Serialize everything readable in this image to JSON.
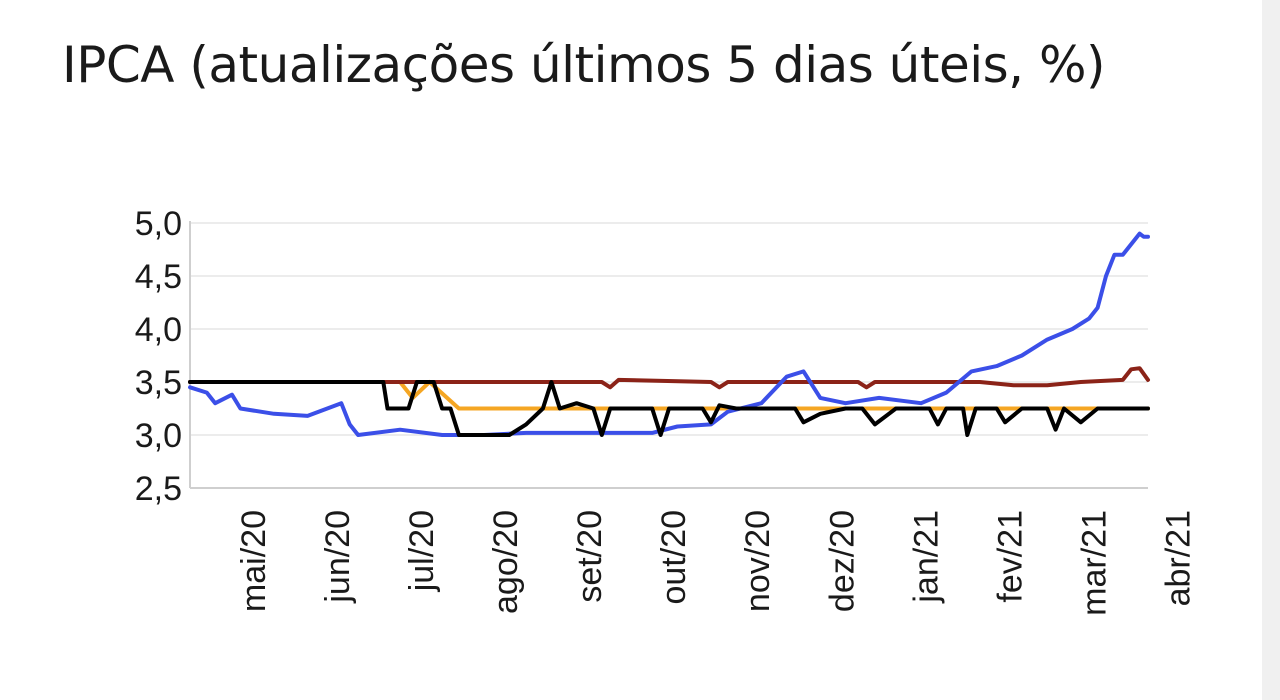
{
  "title": "IPCA (atualizações últimos 5 dias úteis, %)",
  "chart_data": {
    "type": "line",
    "title": "IPCA (atualizações últimos 5 dias úteis, %)",
    "xlabel": "",
    "ylabel": "",
    "x_tick_labels": [
      "mai/20",
      "jun/20",
      "jul/20",
      "ago/20",
      "set/20",
      "out/20",
      "nov/20",
      "dez/20",
      "jan/21",
      "fev/21",
      "mar/21",
      "abr/21"
    ],
    "y_tick_labels": [
      "5,0",
      "4,5",
      "4,0",
      "3,5",
      "3,0",
      "2,5"
    ],
    "ylim": [
      2.5,
      5.0
    ],
    "xlim": [
      0,
      11.4
    ],
    "grid": "horizontal",
    "legend": "none",
    "series": [
      {
        "color": "#f5a623",
        "points": [
          [
            0,
            3.5
          ],
          [
            2.3,
            3.5
          ],
          [
            2.5,
            3.5
          ],
          [
            2.65,
            3.35
          ],
          [
            2.85,
            3.5
          ],
          [
            3.2,
            3.25
          ],
          [
            4.2,
            3.25
          ],
          [
            11.4,
            3.25
          ]
        ]
      },
      {
        "color": "#8b2318",
        "points": [
          [
            0,
            3.5
          ],
          [
            4.9,
            3.5
          ],
          [
            5.0,
            3.45
          ],
          [
            5.1,
            3.52
          ],
          [
            6.2,
            3.5
          ],
          [
            6.3,
            3.45
          ],
          [
            6.4,
            3.5
          ],
          [
            7.95,
            3.5
          ],
          [
            8.05,
            3.45
          ],
          [
            8.15,
            3.5
          ],
          [
            9.0,
            3.5
          ],
          [
            9.4,
            3.5
          ],
          [
            9.8,
            3.47
          ],
          [
            10.2,
            3.47
          ],
          [
            10.6,
            3.5
          ],
          [
            11.1,
            3.52
          ],
          [
            11.2,
            3.62
          ],
          [
            11.3,
            3.63
          ],
          [
            11.4,
            3.52
          ]
        ]
      },
      {
        "color": "#3b4fe8",
        "points": [
          [
            0,
            3.45
          ],
          [
            0.2,
            3.4
          ],
          [
            0.3,
            3.3
          ],
          [
            0.5,
            3.38
          ],
          [
            0.6,
            3.25
          ],
          [
            1.0,
            3.2
          ],
          [
            1.4,
            3.18
          ],
          [
            1.8,
            3.3
          ],
          [
            1.9,
            3.1
          ],
          [
            2.0,
            3.0
          ],
          [
            2.5,
            3.05
          ],
          [
            3.0,
            3.0
          ],
          [
            3.5,
            3.0
          ],
          [
            4.0,
            3.02
          ],
          [
            5.5,
            3.02
          ],
          [
            5.8,
            3.08
          ],
          [
            6.2,
            3.1
          ],
          [
            6.4,
            3.22
          ],
          [
            6.8,
            3.3
          ],
          [
            7.1,
            3.55
          ],
          [
            7.3,
            3.6
          ],
          [
            7.5,
            3.35
          ],
          [
            7.8,
            3.3
          ],
          [
            8.2,
            3.35
          ],
          [
            8.7,
            3.3
          ],
          [
            9.0,
            3.4
          ],
          [
            9.3,
            3.6
          ],
          [
            9.6,
            3.65
          ],
          [
            9.9,
            3.75
          ],
          [
            10.2,
            3.9
          ],
          [
            10.5,
            4.0
          ],
          [
            10.7,
            4.1
          ],
          [
            10.8,
            4.2
          ],
          [
            10.9,
            4.5
          ],
          [
            11.0,
            4.7
          ],
          [
            11.1,
            4.7
          ],
          [
            11.3,
            4.9
          ],
          [
            11.35,
            4.87
          ],
          [
            11.4,
            4.87
          ]
        ]
      },
      {
        "color": "#000000",
        "points": [
          [
            0,
            3.5
          ],
          [
            2.3,
            3.5
          ],
          [
            2.35,
            3.25
          ],
          [
            2.6,
            3.25
          ],
          [
            2.7,
            3.5
          ],
          [
            2.9,
            3.5
          ],
          [
            3.0,
            3.25
          ],
          [
            3.1,
            3.25
          ],
          [
            3.2,
            3.0
          ],
          [
            3.5,
            3.0
          ],
          [
            3.8,
            3.0
          ],
          [
            4.0,
            3.1
          ],
          [
            4.2,
            3.25
          ],
          [
            4.3,
            3.5
          ],
          [
            4.4,
            3.25
          ],
          [
            4.6,
            3.3
          ],
          [
            4.8,
            3.25
          ],
          [
            4.9,
            3.0
          ],
          [
            5.0,
            3.25
          ],
          [
            5.5,
            3.25
          ],
          [
            5.6,
            3.0
          ],
          [
            5.7,
            3.25
          ],
          [
            6.1,
            3.25
          ],
          [
            6.2,
            3.12
          ],
          [
            6.3,
            3.28
          ],
          [
            6.5,
            3.25
          ],
          [
            7.2,
            3.25
          ],
          [
            7.3,
            3.12
          ],
          [
            7.5,
            3.2
          ],
          [
            7.8,
            3.25
          ],
          [
            8.0,
            3.25
          ],
          [
            8.15,
            3.1
          ],
          [
            8.4,
            3.25
          ],
          [
            8.8,
            3.25
          ],
          [
            8.9,
            3.1
          ],
          [
            9.0,
            3.25
          ],
          [
            9.2,
            3.25
          ],
          [
            9.25,
            3.0
          ],
          [
            9.35,
            3.25
          ],
          [
            9.6,
            3.25
          ],
          [
            9.7,
            3.12
          ],
          [
            9.9,
            3.25
          ],
          [
            10.2,
            3.25
          ],
          [
            10.3,
            3.05
          ],
          [
            10.4,
            3.25
          ],
          [
            10.6,
            3.12
          ],
          [
            10.8,
            3.25
          ],
          [
            11.4,
            3.25
          ]
        ]
      }
    ]
  }
}
